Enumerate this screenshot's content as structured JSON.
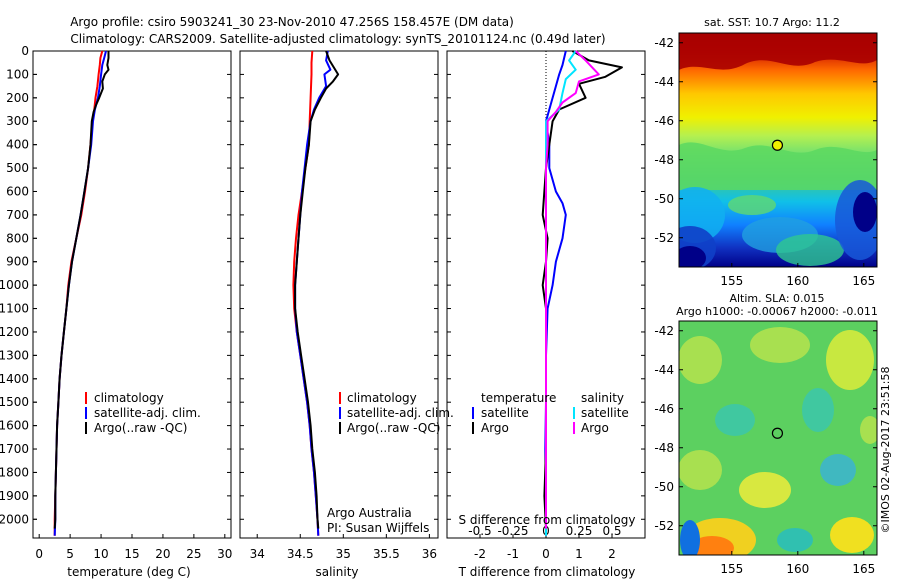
{
  "header": {
    "line1": "Argo profile: csiro 5903241_30 23-Nov-2010 47.256S 158.457E (DM data)",
    "line2": "Climatology: CARS2009. Satellite-adjusted climatology: synTS_20101124.nc (0.49d later)"
  },
  "colors": {
    "climatology": "#ff0000",
    "satellite": "#0000ff",
    "argo": "#000000",
    "satellite_diff_S": "#00e5ff",
    "argo_diff_S": "#ff00ff"
  },
  "legend": {
    "climatology": "climatology",
    "satellite_adj": "satellite-adj. clim.",
    "argo_raw": "Argo(..raw -QC)",
    "temperature": "temperature",
    "salinity": "salinity",
    "satellite": "satellite",
    "argo": "Argo"
  },
  "notes": {
    "argo_australia": "Argo Australia",
    "pi": "PI: Susan Wijffels",
    "credit": "©IMOS 02-Aug-2017 23:51:58"
  },
  "chart_data": [
    {
      "type": "line",
      "panel": "temperature",
      "xlabel": "temperature (deg C)",
      "ylabel": "",
      "xlim": [
        -1,
        31
      ],
      "ylim": [
        2080,
        0
      ],
      "xticks": [
        0,
        5,
        10,
        15,
        20,
        25,
        30
      ],
      "yticks": [
        0,
        100,
        200,
        300,
        400,
        500,
        600,
        700,
        800,
        900,
        1000,
        1100,
        1200,
        1300,
        1400,
        1500,
        1600,
        1700,
        1800,
        1900,
        2000
      ],
      "series": [
        {
          "name": "climatology",
          "color": "#ff0000",
          "points": [
            [
              10.2,
              0
            ],
            [
              9.9,
              30
            ],
            [
              9.8,
              60
            ],
            [
              9.6,
              100
            ],
            [
              9.4,
              150
            ],
            [
              9.1,
              200
            ],
            [
              8.9,
              250
            ],
            [
              8.6,
              300
            ],
            [
              8.3,
              400
            ],
            [
              7.9,
              500
            ],
            [
              7.4,
              600
            ],
            [
              6.8,
              700
            ],
            [
              6.0,
              800
            ],
            [
              5.2,
              900
            ],
            [
              4.7,
              1000
            ],
            [
              4.4,
              1100
            ],
            [
              4.0,
              1200
            ],
            [
              3.6,
              1300
            ],
            [
              3.3,
              1400
            ],
            [
              3.1,
              1500
            ],
            [
              2.9,
              1600
            ],
            [
              2.8,
              1700
            ],
            [
              2.7,
              1800
            ],
            [
              2.6,
              1900
            ],
            [
              2.5,
              2000
            ],
            [
              2.5,
              2070
            ]
          ]
        },
        {
          "name": "satellite-adj. clim.",
          "color": "#0000ff",
          "points": [
            [
              10.8,
              0
            ],
            [
              10.5,
              30
            ],
            [
              10.2,
              60
            ],
            [
              10.0,
              100
            ],
            [
              9.8,
              150
            ],
            [
              9.5,
              200
            ],
            [
              9.0,
              250
            ],
            [
              8.7,
              300
            ],
            [
              8.4,
              400
            ],
            [
              7.9,
              500
            ],
            [
              7.3,
              600
            ],
            [
              6.7,
              700
            ],
            [
              6.0,
              800
            ],
            [
              5.3,
              900
            ],
            [
              4.8,
              1000
            ],
            [
              4.4,
              1100
            ],
            [
              4.0,
              1200
            ],
            [
              3.6,
              1300
            ],
            [
              3.3,
              1400
            ],
            [
              3.1,
              1500
            ],
            [
              2.9,
              1600
            ],
            [
              2.8,
              1700
            ],
            [
              2.7,
              1800
            ],
            [
              2.6,
              1900
            ],
            [
              2.6,
              2000
            ],
            [
              2.5,
              2070
            ]
          ]
        },
        {
          "name": "Argo(..raw -QC)",
          "color": "#000000",
          "points": [
            [
              11.2,
              0
            ],
            [
              11.2,
              30
            ],
            [
              11.0,
              60
            ],
            [
              11.2,
              80
            ],
            [
              10.6,
              100
            ],
            [
              10.2,
              130
            ],
            [
              10.3,
              160
            ],
            [
              9.7,
              200
            ],
            [
              9.2,
              230
            ],
            [
              8.8,
              260
            ],
            [
              8.5,
              300
            ],
            [
              8.3,
              400
            ],
            [
              7.9,
              500
            ],
            [
              7.3,
              600
            ],
            [
              6.7,
              700
            ],
            [
              6.0,
              800
            ],
            [
              5.3,
              900
            ],
            [
              4.8,
              1000
            ],
            [
              4.4,
              1100
            ],
            [
              4.0,
              1200
            ],
            [
              3.6,
              1300
            ],
            [
              3.3,
              1400
            ],
            [
              3.1,
              1500
            ],
            [
              2.9,
              1600
            ],
            [
              2.8,
              1700
            ],
            [
              2.7,
              1800
            ],
            [
              2.6,
              1900
            ],
            [
              2.6,
              2000
            ],
            [
              2.5,
              2040
            ]
          ]
        }
      ]
    },
    {
      "type": "line",
      "panel": "salinity",
      "xlabel": "salinity",
      "xlim": [
        33.8,
        36.1
      ],
      "ylim": [
        2080,
        0
      ],
      "xticks": [
        34,
        34.5,
        35,
        35.5,
        36
      ],
      "series": [
        {
          "name": "climatology",
          "color": "#ff0000",
          "points": [
            [
              34.64,
              0
            ],
            [
              34.63,
              50
            ],
            [
              34.63,
              100
            ],
            [
              34.62,
              200
            ],
            [
              34.61,
              300
            ],
            [
              34.6,
              400
            ],
            [
              34.56,
              500
            ],
            [
              34.52,
              600
            ],
            [
              34.48,
              700
            ],
            [
              34.45,
              800
            ],
            [
              34.43,
              900
            ],
            [
              34.42,
              1000
            ],
            [
              34.43,
              1100
            ],
            [
              34.46,
              1200
            ],
            [
              34.5,
              1300
            ],
            [
              34.54,
              1400
            ],
            [
              34.58,
              1500
            ],
            [
              34.61,
              1600
            ],
            [
              34.63,
              1700
            ],
            [
              34.66,
              1800
            ],
            [
              34.68,
              1900
            ],
            [
              34.7,
              2000
            ],
            [
              34.71,
              2070
            ]
          ]
        },
        {
          "name": "satellite-adj. clim.",
          "color": "#0000ff",
          "points": [
            [
              34.82,
              0
            ],
            [
              34.8,
              40
            ],
            [
              34.85,
              80
            ],
            [
              34.78,
              100
            ],
            [
              34.8,
              150
            ],
            [
              34.72,
              200
            ],
            [
              34.66,
              250
            ],
            [
              34.62,
              300
            ],
            [
              34.58,
              400
            ],
            [
              34.55,
              500
            ],
            [
              34.52,
              600
            ],
            [
              34.5,
              700
            ],
            [
              34.48,
              800
            ],
            [
              34.46,
              900
            ],
            [
              34.44,
              1000
            ],
            [
              34.44,
              1100
            ],
            [
              34.46,
              1200
            ],
            [
              34.5,
              1300
            ],
            [
              34.54,
              1400
            ],
            [
              34.58,
              1500
            ],
            [
              34.61,
              1600
            ],
            [
              34.63,
              1700
            ],
            [
              34.66,
              1800
            ],
            [
              34.68,
              1900
            ],
            [
              34.7,
              2000
            ],
            [
              34.71,
              2070
            ]
          ]
        },
        {
          "name": "Argo(..raw -QC)",
          "color": "#000000",
          "points": [
            [
              34.8,
              0
            ],
            [
              34.84,
              40
            ],
            [
              34.94,
              100
            ],
            [
              34.88,
              130
            ],
            [
              34.8,
              160
            ],
            [
              34.74,
              200
            ],
            [
              34.67,
              250
            ],
            [
              34.62,
              300
            ],
            [
              34.6,
              400
            ],
            [
              34.56,
              500
            ],
            [
              34.53,
              600
            ],
            [
              34.5,
              700
            ],
            [
              34.48,
              800
            ],
            [
              34.46,
              900
            ],
            [
              34.44,
              1000
            ],
            [
              34.44,
              1100
            ],
            [
              34.47,
              1200
            ],
            [
              34.51,
              1300
            ],
            [
              34.55,
              1400
            ],
            [
              34.59,
              1500
            ],
            [
              34.62,
              1600
            ],
            [
              34.64,
              1700
            ],
            [
              34.67,
              1800
            ],
            [
              34.69,
              1900
            ],
            [
              34.7,
              2000
            ],
            [
              34.71,
              2040
            ]
          ]
        }
      ]
    },
    {
      "type": "line",
      "panel": "difference",
      "xlabel": "T difference from climatology",
      "xlabel_top": "S difference from climatology",
      "xlim": [
        -3,
        3
      ],
      "ylim": [
        2080,
        0
      ],
      "xticks": [
        -2,
        -1,
        0,
        1,
        2
      ],
      "top_ticks": [
        "-0.5",
        "-0.25",
        "0",
        "0.25",
        "0.5"
      ],
      "series": [
        {
          "name": "satellite",
          "quantity": "temperature",
          "color": "#0000ff",
          "points": [
            [
              0.6,
              0
            ],
            [
              0.5,
              60
            ],
            [
              0.4,
              100
            ],
            [
              0.3,
              150
            ],
            [
              0.1,
              250
            ],
            [
              0.0,
              300
            ],
            [
              0.1,
              400
            ],
            [
              0.1,
              500
            ],
            [
              0.3,
              600
            ],
            [
              0.5,
              650
            ],
            [
              0.6,
              700
            ],
            [
              0.5,
              800
            ],
            [
              0.3,
              900
            ],
            [
              0.2,
              1000
            ],
            [
              0.05,
              1100
            ],
            [
              0.0,
              1300
            ],
            [
              0.0,
              1500
            ],
            [
              -0.02,
              1700
            ],
            [
              0.0,
              1900
            ],
            [
              0.0,
              2070
            ]
          ]
        },
        {
          "name": "Argo",
          "quantity": "temperature",
          "color": "#000000",
          "points": [
            [
              0.8,
              0
            ],
            [
              1.3,
              40
            ],
            [
              2.3,
              70
            ],
            [
              1.8,
              110
            ],
            [
              1.0,
              140
            ],
            [
              1.2,
              200
            ],
            [
              0.4,
              250
            ],
            [
              0.2,
              300
            ],
            [
              0.1,
              400
            ],
            [
              0.0,
              500
            ],
            [
              -0.1,
              700
            ],
            [
              0.05,
              800
            ],
            [
              0.0,
              900
            ],
            [
              -0.1,
              1000
            ],
            [
              0.0,
              1100
            ],
            [
              0.0,
              1300
            ],
            [
              0.0,
              1500
            ],
            [
              0.0,
              1700
            ],
            [
              -0.05,
              1900
            ],
            [
              0.0,
              2040
            ]
          ]
        },
        {
          "name": "satellite",
          "quantity": "salinity",
          "color": "#00e5ff",
          "points": [
            [
              0.9,
              0
            ],
            [
              0.7,
              40
            ],
            [
              0.9,
              80
            ],
            [
              0.6,
              120
            ],
            [
              0.5,
              180
            ],
            [
              0.4,
              250
            ],
            [
              0.0,
              300
            ],
            [
              0.0,
              400
            ],
            [
              0.0,
              500
            ],
            [
              0.0,
              700
            ],
            [
              0.0,
              900
            ],
            [
              0.0,
              1100
            ],
            [
              0.0,
              1300
            ],
            [
              0.0,
              1500
            ],
            [
              0.0,
              1800
            ],
            [
              0.0,
              2070
            ]
          ]
        },
        {
          "name": "Argo",
          "quantity": "salinity",
          "color": "#ff00ff",
          "points": [
            [
              0.9,
              0
            ],
            [
              1.2,
              40
            ],
            [
              1.6,
              100
            ],
            [
              1.0,
              130
            ],
            [
              0.9,
              180
            ],
            [
              0.5,
              220
            ],
            [
              0.3,
              260
            ],
            [
              0.05,
              300
            ],
            [
              0.05,
              400
            ],
            [
              0.0,
              500
            ],
            [
              0.0,
              700
            ],
            [
              0.0,
              900
            ],
            [
              0.0,
              1100
            ],
            [
              0.0,
              1300
            ],
            [
              0.0,
              1500
            ],
            [
              0.0,
              1700
            ],
            [
              0.0,
              1900
            ],
            [
              0.0,
              2040
            ]
          ]
        }
      ]
    },
    {
      "type": "heatmap",
      "panel": "sst_map",
      "title": "sat. SST: 10.7 Argo: 11.2",
      "xlim": [
        151,
        166
      ],
      "ylim": [
        -53.5,
        -41.5
      ],
      "xticks": [
        155,
        160,
        165
      ],
      "yticks": [
        -42,
        -44,
        -46,
        -48,
        -50,
        -52
      ],
      "marker": {
        "lon": 158.457,
        "lat": -47.256
      }
    },
    {
      "type": "heatmap",
      "panel": "sla_map",
      "title": "Altim. SLA: 0.015",
      "subtitle": "Argo h1000: -0.00067 h2000: -0.011",
      "xlim": [
        151,
        166
      ],
      "ylim": [
        -53.5,
        -41.5
      ],
      "xticks": [
        155,
        160,
        165
      ],
      "yticks": [
        -42,
        -44,
        -46,
        -48,
        -50,
        -52
      ],
      "marker": {
        "lon": 158.457,
        "lat": -47.256
      }
    }
  ]
}
